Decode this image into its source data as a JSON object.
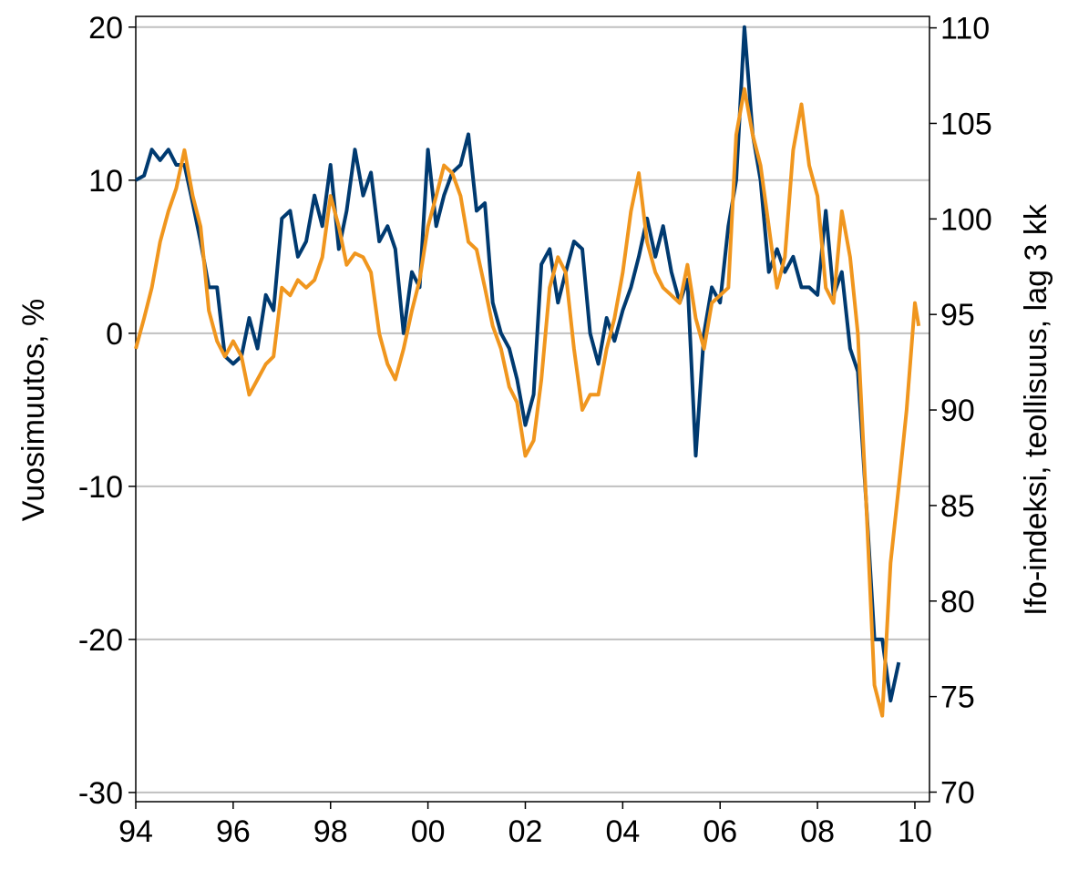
{
  "chart_data": {
    "type": "line",
    "ylabel": "Vuosimuutos, %",
    "y2label": "Ifo-indeksi, teollisuus, lag 3 kk",
    "xlim": [
      1994,
      2010.3
    ],
    "xticks": [
      {
        "value": 1994,
        "label": "94"
      },
      {
        "value": 1996,
        "label": "96"
      },
      {
        "value": 1998,
        "label": "98"
      },
      {
        "value": 2000,
        "label": "00"
      },
      {
        "value": 2002,
        "label": "02"
      },
      {
        "value": 2004,
        "label": "04"
      },
      {
        "value": 2006,
        "label": "06"
      },
      {
        "value": 2008,
        "label": "08"
      },
      {
        "value": 2010,
        "label": "10"
      }
    ],
    "ylim": [
      -30.6,
      20.7
    ],
    "yticks": [
      -30,
      -20,
      -10,
      0,
      10,
      20
    ],
    "y2lim": [
      69.5,
      110.6
    ],
    "y2ticks": [
      70,
      75,
      80,
      85,
      90,
      95,
      100,
      105,
      110
    ],
    "grid": true,
    "series": [
      {
        "color": "#003a70",
        "axis": "y",
        "x": [
          1994,
          1994.17,
          1994.33,
          1994.5,
          1994.67,
          1994.83,
          1995,
          1995.17,
          1995.33,
          1995.5,
          1995.67,
          1995.83,
          1996,
          1996.17,
          1996.33,
          1996.5,
          1996.67,
          1996.83,
          1997,
          1997.17,
          1997.33,
          1997.5,
          1997.67,
          1997.83,
          1998,
          1998.17,
          1998.33,
          1998.5,
          1998.67,
          1998.83,
          1999,
          1999.17,
          1999.33,
          1999.5,
          1999.67,
          1999.83,
          2000,
          2000.17,
          2000.33,
          2000.5,
          2000.67,
          2000.83,
          2001,
          2001.17,
          2001.33,
          2001.5,
          2001.67,
          2001.83,
          2002,
          2002.17,
          2002.33,
          2002.5,
          2002.67,
          2002.83,
          2003,
          2003.17,
          2003.33,
          2003.5,
          2003.67,
          2003.83,
          2004,
          2004.17,
          2004.33,
          2004.5,
          2004.67,
          2004.83,
          2005,
          2005.17,
          2005.33,
          2005.5,
          2005.67,
          2005.83,
          2006,
          2006.17,
          2006.33,
          2006.5,
          2006.67,
          2006.83,
          2007,
          2007.17,
          2007.33,
          2007.5,
          2007.67,
          2007.83,
          2008,
          2008.17,
          2008.33,
          2008.5,
          2008.67,
          2008.83,
          2009,
          2009.17,
          2009.33,
          2009.5,
          2009.67
        ],
        "values": [
          10,
          10.3,
          12,
          11.3,
          12,
          11,
          11,
          8.5,
          6,
          3,
          3,
          -1.5,
          -2,
          -1.5,
          1,
          -1,
          2.5,
          1.5,
          7.5,
          8,
          5,
          6,
          9,
          7,
          11,
          5.5,
          8,
          12,
          9,
          10.5,
          6,
          7,
          5.5,
          0,
          4,
          3,
          12,
          7,
          9,
          10.5,
          11,
          13,
          8,
          8.5,
          2,
          0,
          -1,
          -3,
          -6,
          -4,
          4.5,
          5.5,
          2,
          4,
          6,
          5.5,
          0,
          -2,
          1,
          -0.5,
          1.5,
          3,
          5,
          7.5,
          5,
          7,
          4,
          2,
          3.5,
          -8,
          0,
          3,
          2,
          7,
          10,
          20,
          13,
          10,
          4,
          5.5,
          4,
          5,
          3,
          3,
          2.5,
          8,
          2.5,
          4,
          -1,
          -2.5,
          -11,
          -20,
          -20,
          -24,
          -21.5
        ]
      },
      {
        "color": "#f0961e",
        "axis": "y2",
        "x": [
          1994,
          1994.17,
          1994.33,
          1994.5,
          1994.67,
          1994.83,
          1995,
          1995.17,
          1995.33,
          1995.5,
          1995.67,
          1995.83,
          1996,
          1996.17,
          1996.33,
          1996.5,
          1996.67,
          1996.83,
          1997,
          1997.17,
          1997.33,
          1997.5,
          1997.67,
          1997.83,
          1998,
          1998.17,
          1998.33,
          1998.5,
          1998.67,
          1998.83,
          1999,
          1999.17,
          1999.33,
          1999.5,
          1999.67,
          1999.83,
          2000,
          2000.17,
          2000.33,
          2000.5,
          2000.67,
          2000.83,
          2001,
          2001.17,
          2001.33,
          2001.5,
          2001.67,
          2001.83,
          2002,
          2002.17,
          2002.33,
          2002.5,
          2002.67,
          2002.83,
          2003,
          2003.17,
          2003.33,
          2003.5,
          2003.67,
          2003.83,
          2004,
          2004.17,
          2004.33,
          2004.5,
          2004.67,
          2004.83,
          2005,
          2005.17,
          2005.33,
          2005.5,
          2005.67,
          2005.83,
          2006,
          2006.17,
          2006.33,
          2006.5,
          2006.67,
          2006.83,
          2007,
          2007.17,
          2007.33,
          2007.5,
          2007.67,
          2007.83,
          2008,
          2008.17,
          2008.33,
          2008.5,
          2008.67,
          2008.83,
          2009,
          2009.17,
          2009.33,
          2009.5,
          2009.67,
          2009.83,
          2010,
          2010.08
        ],
        "values": [
          93.2,
          94.8,
          96.4,
          98.8,
          100.4,
          101.6,
          103.6,
          101.2,
          99.6,
          95.2,
          93.6,
          92.8,
          93.6,
          92.8,
          90.8,
          91.6,
          92.4,
          92.8,
          96.4,
          96,
          96.8,
          96.4,
          96.8,
          98,
          101.2,
          99.6,
          97.6,
          98.2,
          98,
          97.2,
          94,
          92.4,
          91.6,
          93.2,
          95.2,
          96.8,
          99.6,
          101.2,
          102.8,
          102.4,
          101.2,
          98.8,
          98.4,
          96.4,
          94.4,
          93.2,
          91.2,
          90.4,
          87.6,
          88.4,
          91.6,
          96.4,
          98,
          97.2,
          93.2,
          90,
          90.8,
          90.8,
          93.2,
          94.8,
          97.2,
          100.4,
          102.4,
          98.8,
          97.2,
          96.4,
          96,
          95.6,
          97.6,
          94.8,
          93.2,
          95.6,
          96,
          96.4,
          104.4,
          106.8,
          104.4,
          102.8,
          99.6,
          96.4,
          98,
          103.6,
          106,
          102.8,
          101.2,
          96.4,
          95.6,
          100.4,
          98,
          94,
          85.2,
          75.6,
          74,
          82,
          86,
          90,
          95.6,
          94.4
        ]
      }
    ]
  }
}
